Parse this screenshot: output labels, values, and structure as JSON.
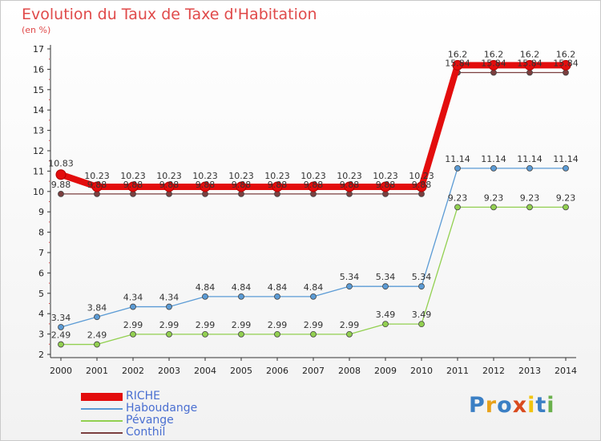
{
  "title": "Evolution du Taux de Taxe d'Habitation",
  "subtitle": "(en %)",
  "logo": {
    "text": "Proxiti",
    "colors": [
      "#3b7fc4",
      "#e8a21c",
      "#3b7fc4",
      "#d94a1e",
      "#f1c40f",
      "#3b7fc4",
      "#6ab04c"
    ]
  },
  "chart_data": {
    "type": "line",
    "title": "Evolution du Taux de Taxe d'Habitation",
    "subtitle": "(en %)",
    "x": [
      "2000",
      "2001",
      "2002",
      "2003",
      "2004",
      "2005",
      "2006",
      "2007",
      "2008",
      "2009",
      "2010",
      "2011",
      "2012",
      "2013",
      "2014"
    ],
    "yticks": [
      "2",
      "3",
      "4",
      "5",
      "6",
      "7",
      "8",
      "9",
      "10",
      "11",
      "12",
      "13",
      "14",
      "15",
      "16",
      "17"
    ],
    "ylim": [
      2,
      17
    ],
    "grid": false,
    "legend_position": "bottom-left",
    "series": [
      {
        "name": "RICHE",
        "color": "#e30d0d",
        "values": [
          10.83,
          10.23,
          10.23,
          10.23,
          10.23,
          10.23,
          10.23,
          10.23,
          10.23,
          10.23,
          10.23,
          16.2,
          16.2,
          16.2,
          16.2
        ],
        "labels": [
          "10.83",
          "10.23",
          "10.23",
          "10.23",
          "10.23",
          "10.23",
          "10.23",
          "10.23",
          "10.23",
          "10.23",
          "10.23",
          "16.2",
          "16.2",
          "16.2",
          "16.2"
        ]
      },
      {
        "name": "Haboudange",
        "color": "#5b9bd5",
        "values": [
          3.34,
          3.84,
          4.34,
          4.34,
          4.84,
          4.84,
          4.84,
          4.84,
          5.34,
          5.34,
          5.34,
          11.14,
          11.14,
          11.14,
          11.14
        ],
        "labels": [
          "3.34",
          "3.84",
          "4.34",
          "4.34",
          "4.84",
          "4.84",
          "4.84",
          "4.84",
          "5.34",
          "5.34",
          "5.34",
          "11.14",
          "11.14",
          "11.14",
          "11.14"
        ]
      },
      {
        "name": "Pévange",
        "color": "#92d050",
        "values": [
          2.49,
          2.49,
          2.99,
          2.99,
          2.99,
          2.99,
          2.99,
          2.99,
          2.99,
          3.49,
          3.49,
          9.23,
          9.23,
          9.23,
          9.23
        ],
        "labels": [
          "2.49",
          "2.49",
          "2.99",
          "2.99",
          "2.99",
          "2.99",
          "2.99",
          "2.99",
          "2.99",
          "3.49",
          "3.49",
          "9.23",
          "9.23",
          "9.23",
          "9.23"
        ]
      },
      {
        "name": "Conthil",
        "color": "#7b3f3f",
        "values": [
          9.88,
          9.88,
          9.88,
          9.88,
          9.88,
          9.88,
          9.88,
          9.88,
          9.88,
          9.88,
          9.88,
          15.84,
          15.84,
          15.84,
          15.84
        ],
        "labels": [
          "9.88",
          "9.88",
          "9.88",
          "9.88",
          "9.88",
          "9.88",
          "9.88",
          "9.88",
          "9.88",
          "9.88",
          "9.88",
          "15.84",
          "15.84",
          "15.84",
          "15.84"
        ]
      }
    ]
  }
}
